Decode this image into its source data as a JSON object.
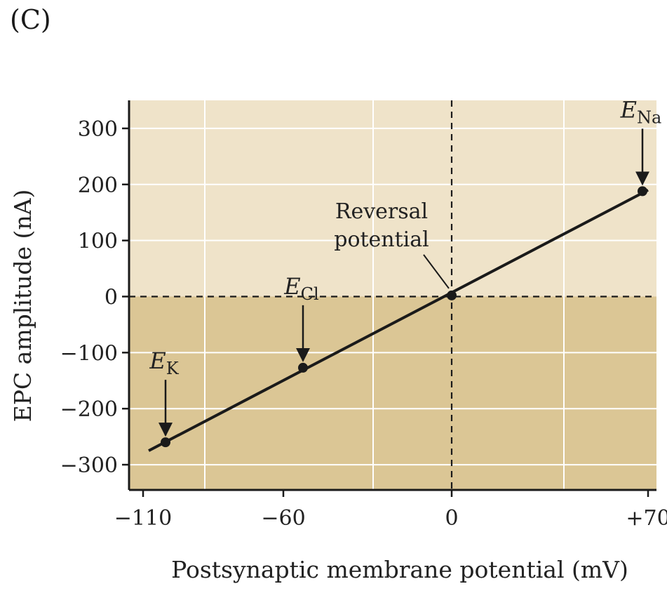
{
  "panel_label": "(C)",
  "chart_data": {
    "type": "line",
    "title": "",
    "xlabel": "Postsynaptic membrane potential (mV)",
    "ylabel": "EPC amplitude (nA)",
    "xlim": [
      -115,
      73
    ],
    "ylim": [
      -345,
      350
    ],
    "x_ticks": [
      -110,
      -60,
      0,
      70
    ],
    "x_tick_labels": [
      "−110",
      "−60",
      "0",
      "+70"
    ],
    "y_ticks": [
      300,
      200,
      100,
      0,
      -100,
      -200,
      -300
    ],
    "y_tick_labels": [
      "300",
      "200",
      "100",
      "0",
      "−100",
      "−200",
      "−300"
    ],
    "x_grid": [
      -88,
      -28,
      40
    ],
    "y_grid": [
      300,
      200,
      100,
      0,
      -100,
      -200,
      -300
    ],
    "reference_lines": {
      "x": 0,
      "y": 0,
      "style": "dashed"
    },
    "fit_line": {
      "x": [
        -108,
        70
      ],
      "y": [
        -275,
        190
      ]
    },
    "points": [
      {
        "name": "E_K",
        "x": -102,
        "y": -260
      },
      {
        "name": "E_Cl",
        "x": -53,
        "y": -127
      },
      {
        "name": "reversal",
        "x": 0,
        "y": 2
      },
      {
        "name": "E_Na",
        "x": 68,
        "y": 188
      }
    ],
    "annotations": [
      {
        "main": "E",
        "sub": "K",
        "target": "E_K"
      },
      {
        "main": "E",
        "sub": "Cl",
        "target": "E_Cl"
      },
      {
        "main": "E",
        "sub": "Na",
        "target": "E_Na"
      },
      {
        "text": [
          "Reversal",
          "potential"
        ],
        "target": "reversal"
      }
    ],
    "colors": {
      "upper_bg": "#efe3c9",
      "lower_bg": "#dbc695",
      "grid": "#ffffff",
      "line": "#1a1a1a",
      "axis": "#1a1a1a"
    }
  }
}
